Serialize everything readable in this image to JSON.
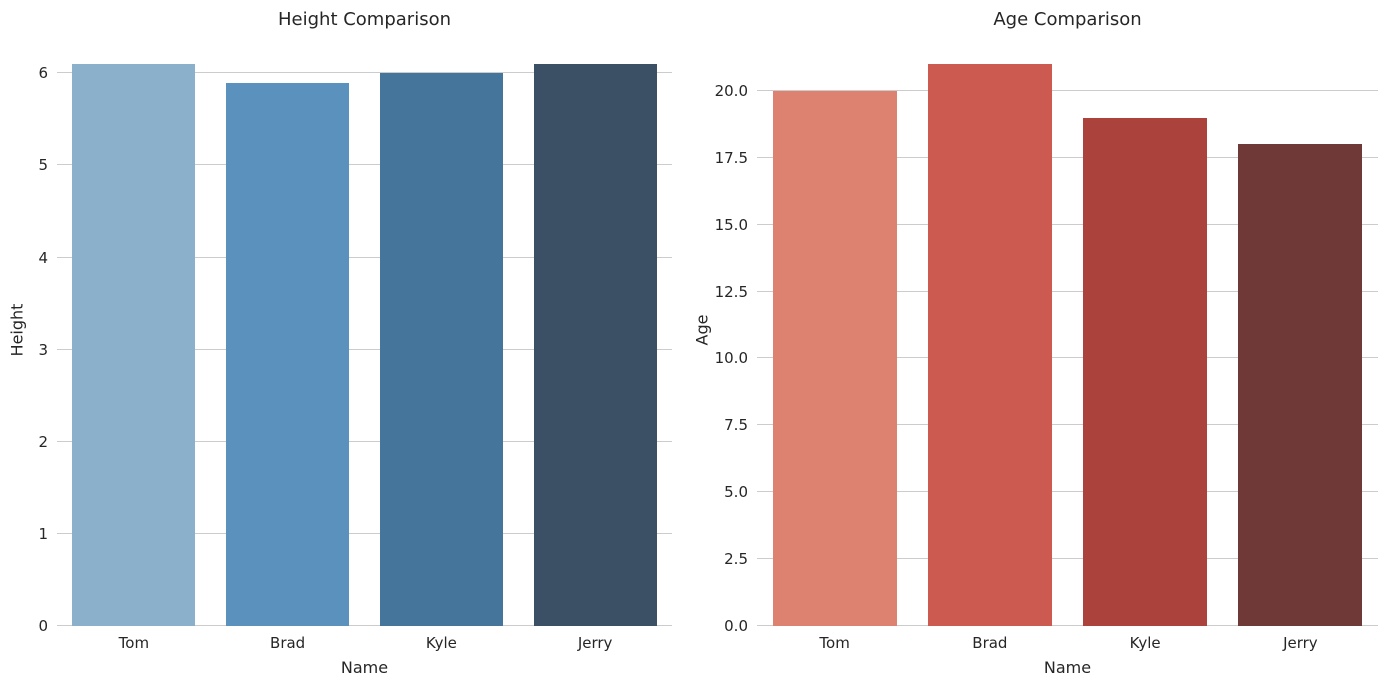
{
  "style": {
    "background": "#ffffff",
    "grid_color": "#cccccc",
    "text_color": "#262626"
  },
  "chart_data": [
    {
      "type": "bar",
      "title": "Height Comparison",
      "xlabel": "Name",
      "ylabel": "Height",
      "categories": [
        "Tom",
        "Brad",
        "Kyle",
        "Jerry"
      ],
      "values": [
        6.1,
        5.9,
        6.0,
        6.1
      ],
      "bar_colors": [
        "#8bb0cc",
        "#5b92bd",
        "#45759b",
        "#3b5064"
      ],
      "yticks": [
        0,
        1,
        2,
        3,
        4,
        5,
        6
      ],
      "ytick_labels": [
        "0",
        "1",
        "2",
        "3",
        "4",
        "5",
        "6"
      ],
      "ylim": [
        0,
        6.405
      ],
      "bar_width_fraction": 0.8,
      "grid": "horizontal",
      "legend": false
    },
    {
      "type": "bar",
      "title": "Age Comparison",
      "xlabel": "Name",
      "ylabel": "Age",
      "categories": [
        "Tom",
        "Brad",
        "Kyle",
        "Jerry"
      ],
      "values": [
        20,
        21,
        19,
        18
      ],
      "bar_colors": [
        "#dd8270",
        "#cd5a50",
        "#ab423c",
        "#6f3937"
      ],
      "yticks": [
        0,
        2.5,
        5,
        7.5,
        10,
        12.5,
        15,
        17.5,
        20
      ],
      "ytick_labels": [
        "0.0",
        "2.5",
        "5.0",
        "7.5",
        "10.0",
        "12.5",
        "15.0",
        "17.5",
        "20.0"
      ],
      "ylim": [
        0,
        22.05
      ],
      "bar_width_fraction": 0.8,
      "grid": "horizontal",
      "legend": false
    }
  ]
}
